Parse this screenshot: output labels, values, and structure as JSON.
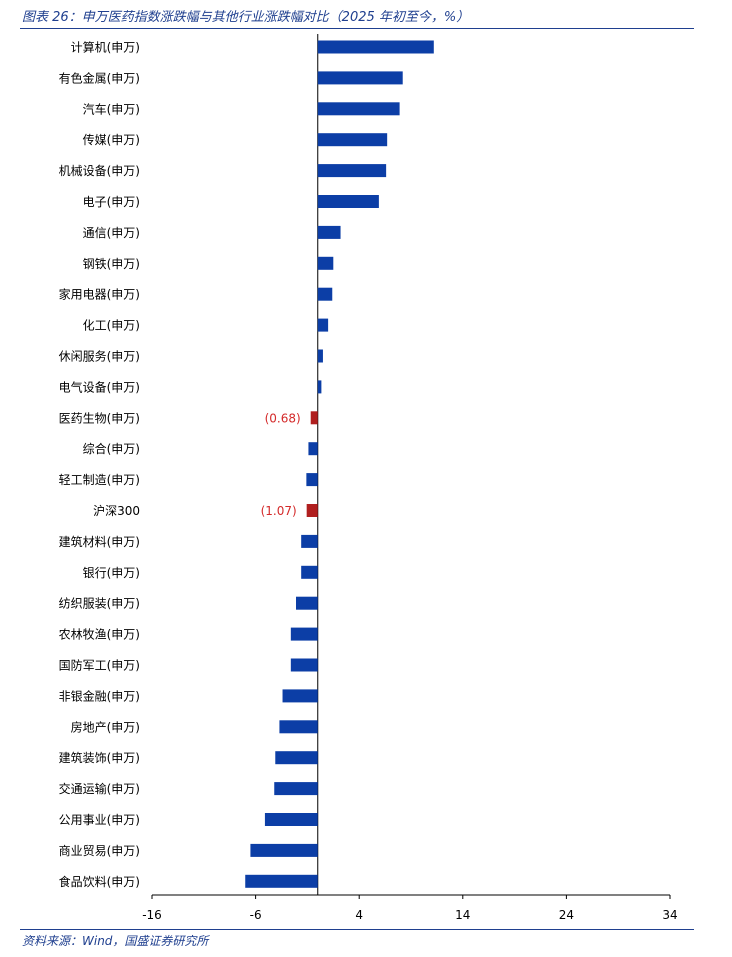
{
  "header": {
    "caption": "图表 26：申万医药指数涨跌幅与其他行业涨跌幅对比（2025 年初至今，%）"
  },
  "footer": {
    "source": "资料来源：Wind，国盛证券研究所"
  },
  "colors": {
    "bar": "#0c3ea6",
    "highlight": "#b01f1f",
    "label_highlight": "#d42a2a",
    "accent": "#1f3f8f"
  },
  "chart_data": {
    "type": "bar",
    "orientation": "horizontal",
    "title": "",
    "xlabel": "",
    "ylabel": "",
    "xlim": [
      -16,
      34
    ],
    "xticks": [
      -16,
      -6,
      4,
      14,
      24,
      34
    ],
    "grid": false,
    "legend": "none",
    "categories": [
      "计算机(申万)",
      "有色金属(申万)",
      "汽车(申万)",
      "传媒(申万)",
      "机械设备(申万)",
      "电子(申万)",
      "通信(申万)",
      "钢铁(申万)",
      "家用电器(申万)",
      "化工(申万)",
      "休闲服务(申万)",
      "电气设备(申万)",
      "医药生物(申万)",
      "综合(申万)",
      "轻工制造(申万)",
      "沪深300",
      "建筑材料(申万)",
      "银行(申万)",
      "纺织服装(申万)",
      "农林牧渔(申万)",
      "国防军工(申万)",
      "非银金融(申万)",
      "房地产(申万)",
      "建筑装饰(申万)",
      "交通运输(申万)",
      "公用事业(申万)",
      "商业贸易(申万)",
      "食品饮料(申万)"
    ],
    "values": [
      11.2,
      8.2,
      7.9,
      6.7,
      6.6,
      5.9,
      2.2,
      1.5,
      1.4,
      1.0,
      0.5,
      0.35,
      -0.68,
      -0.9,
      -1.1,
      -1.07,
      -1.6,
      -1.6,
      -2.1,
      -2.6,
      -2.6,
      -3.4,
      -3.7,
      -4.1,
      -4.2,
      -5.1,
      -6.5,
      -7.0
    ],
    "highlighted": [
      "医药生物(申万)",
      "沪深300"
    ],
    "data_labels": [
      {
        "category": "医药生物(申万)",
        "text": "(0.68)"
      },
      {
        "category": "沪深300",
        "text": "(1.07)"
      }
    ]
  }
}
